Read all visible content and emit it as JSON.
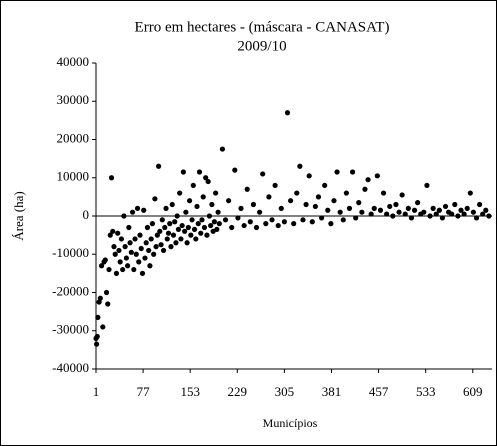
{
  "chart_data": {
    "type": "scatter",
    "title": "Erro em hectares - (máscara - CANASAT)",
    "subtitle": "2009/10",
    "x_label": "Municípios",
    "y_label": "Área (ha)",
    "color": "#000000",
    "xlim": [
      1,
      640
    ],
    "xticks": [
      1,
      77,
      153,
      229,
      305,
      381,
      457,
      533,
      609
    ],
    "ylim": [
      -40000,
      40000
    ],
    "yticks": [
      -40000,
      -30000,
      -20000,
      -10000,
      0,
      10000,
      20000,
      30000,
      40000
    ],
    "grid": false,
    "x": [
      1,
      2,
      3,
      4,
      6,
      8,
      10,
      12,
      14,
      16,
      18,
      20,
      22,
      24,
      26,
      28,
      30,
      32,
      34,
      36,
      38,
      40,
      42,
      44,
      46,
      48,
      50,
      52,
      54,
      56,
      58,
      60,
      62,
      64,
      66,
      68,
      70,
      72,
      74,
      76,
      78,
      80,
      82,
      84,
      86,
      88,
      90,
      92,
      94,
      96,
      98,
      100,
      102,
      104,
      106,
      108,
      110,
      112,
      114,
      116,
      118,
      120,
      122,
      124,
      126,
      128,
      130,
      132,
      134,
      136,
      138,
      140,
      142,
      144,
      146,
      148,
      150,
      152,
      154,
      156,
      158,
      160,
      162,
      164,
      166,
      168,
      170,
      172,
      174,
      176,
      178,
      180,
      182,
      184,
      186,
      188,
      190,
      192,
      194,
      196,
      198,
      200,
      205,
      210,
      215,
      220,
      225,
      230,
      235,
      240,
      245,
      250,
      255,
      260,
      265,
      270,
      275,
      280,
      285,
      290,
      295,
      300,
      305,
      310,
      315,
      320,
      325,
      330,
      335,
      340,
      345,
      350,
      355,
      360,
      365,
      370,
      375,
      380,
      385,
      390,
      395,
      400,
      405,
      410,
      415,
      420,
      425,
      430,
      435,
      440,
      445,
      450,
      455,
      460,
      465,
      470,
      475,
      480,
      485,
      490,
      495,
      500,
      505,
      510,
      515,
      520,
      525,
      530,
      535,
      540,
      545,
      550,
      555,
      560,
      565,
      570,
      575,
      580,
      585,
      590,
      595,
      600,
      605,
      610,
      615,
      620,
      625,
      630,
      635
    ],
    "values": [
      -32000,
      -33500,
      -31500,
      -26500,
      -22500,
      -21500,
      -13000,
      -29000,
      -12000,
      -11500,
      -20000,
      -23000,
      -14000,
      -5000,
      10000,
      -4000,
      -8000,
      -10000,
      -15000,
      -4500,
      -9000,
      -12000,
      -6000,
      -14000,
      0,
      -8000,
      -11000,
      -13000,
      -3000,
      -7000,
      -9500,
      1000,
      -14000,
      -6000,
      -10000,
      2000,
      -12000,
      -5000,
      -8500,
      -15000,
      1500,
      -11000,
      -7000,
      -3000,
      -9000,
      -13000,
      -6000,
      -2000,
      -10000,
      4500,
      -8000,
      -5000,
      13000,
      -4000,
      -7500,
      -1000,
      -9000,
      -3000,
      2000,
      -6000,
      -4500,
      -2000,
      -8000,
      3000,
      -5000,
      -1500,
      -7000,
      0,
      -3500,
      6000,
      -6000,
      -2500,
      11500,
      -4000,
      1000,
      -7000,
      -3000,
      4000,
      -5000,
      -1000,
      8000,
      -3500,
      -6000,
      2500,
      -2000,
      11500,
      -4500,
      -1000,
      5000,
      -3000,
      10000,
      -5000,
      9000,
      0,
      -2500,
      3000,
      -4000,
      -1500,
      6000,
      -3500,
      1000,
      -2000,
      17500,
      -1000,
      4000,
      -3000,
      12000,
      -500,
      2000,
      -2500,
      7000,
      -1500,
      3000,
      -3000,
      1000,
      11000,
      -2000,
      5000,
      -1000,
      8000,
      -2500,
      2000,
      -1500,
      27000,
      4000,
      -2000,
      6000,
      13000,
      -1000,
      3000,
      10500,
      -1500,
      2500,
      5000,
      -500,
      8000,
      1500,
      -2000,
      4000,
      11500,
      1000,
      -1000,
      6000,
      2000,
      11500,
      -500,
      3500,
      1000,
      7000,
      9500,
      500,
      2000,
      10500,
      1500,
      6000,
      500,
      2500,
      0,
      3000,
      1000,
      5500,
      500,
      2000,
      -500,
      1500,
      3500,
      500,
      1000,
      8000,
      0,
      2000,
      500,
      1500,
      -500,
      2500,
      1000,
      500,
      3000,
      0,
      1500,
      500,
      2000,
      6000,
      1000,
      -500,
      3000,
      500,
      1500,
      0
    ]
  }
}
